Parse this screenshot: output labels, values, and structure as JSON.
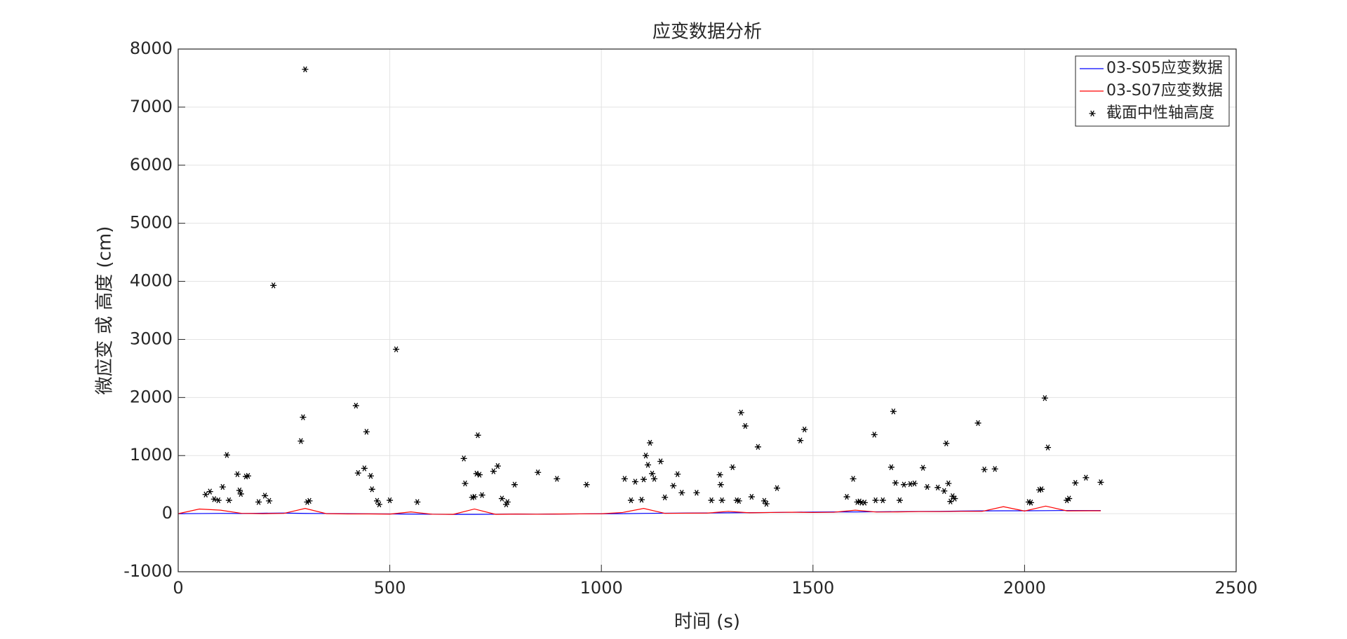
{
  "chart_data": {
    "type": "line",
    "title": "应变数据分析",
    "xlabel": "时间 (s)",
    "ylabel": "微应变 或 高度 (cm)",
    "xlim": [
      0,
      2500
    ],
    "ylim": [
      -1000,
      8000
    ],
    "xticks": [
      0,
      500,
      1000,
      1500,
      2000,
      2500
    ],
    "yticks": [
      -1000,
      0,
      1000,
      2000,
      3000,
      4000,
      5000,
      6000,
      7000,
      8000
    ],
    "grid": true,
    "legend": "top-right",
    "series": [
      {
        "name": "03-S05应变数据",
        "color": "#0000ff",
        "mode": "line",
        "x": [
          0,
          50,
          100,
          150,
          200,
          250,
          300,
          350,
          400,
          450,
          500,
          550,
          600,
          650,
          700,
          750,
          800,
          850,
          900,
          950,
          1000,
          1050,
          1100,
          1150,
          1200,
          1250,
          1300,
          1350,
          1400,
          1450,
          1500,
          1550,
          1600,
          1650,
          1700,
          1750,
          1800,
          1850,
          1900,
          1950,
          2000,
          2050,
          2100,
          2150,
          2180
        ],
        "values": [
          0,
          2,
          5,
          3,
          8,
          10,
          4,
          2,
          0,
          -3,
          -5,
          -8,
          -10,
          -12,
          -12,
          -10,
          -8,
          -10,
          -6,
          -4,
          -2,
          0,
          5,
          8,
          10,
          12,
          15,
          18,
          20,
          25,
          28,
          30,
          30,
          32,
          35,
          38,
          40,
          45,
          48,
          50,
          50,
          52,
          55,
          55,
          55
        ]
      },
      {
        "name": "03-S07应变数据",
        "color": "#ff0000",
        "mode": "line",
        "x": [
          0,
          50,
          100,
          150,
          200,
          250,
          300,
          350,
          400,
          450,
          500,
          550,
          600,
          650,
          700,
          750,
          800,
          850,
          900,
          950,
          1000,
          1050,
          1100,
          1150,
          1200,
          1250,
          1300,
          1350,
          1400,
          1450,
          1500,
          1550,
          1600,
          1650,
          1700,
          1750,
          1800,
          1850,
          1900,
          1950,
          2000,
          2050,
          2100,
          2150,
          2180
        ],
        "values": [
          0,
          80,
          60,
          5,
          0,
          5,
          90,
          0,
          -5,
          -5,
          -8,
          30,
          -10,
          -12,
          80,
          -12,
          -8,
          -10,
          -6,
          -4,
          -2,
          20,
          90,
          5,
          8,
          10,
          40,
          15,
          20,
          25,
          20,
          25,
          60,
          28,
          30,
          35,
          35,
          40,
          40,
          120,
          45,
          130,
          48,
          50,
          50
        ]
      },
      {
        "name": "截面中性轴高度",
        "color": "#000000",
        "mode": "marker",
        "x": [
          65,
          75,
          85,
          95,
          105,
          115,
          120,
          140,
          145,
          148,
          160,
          165,
          190,
          205,
          215,
          225,
          290,
          295,
          300,
          305,
          310,
          420,
          425,
          440,
          445,
          455,
          458,
          470,
          475,
          500,
          515,
          565,
          675,
          678,
          695,
          700,
          705,
          708,
          712,
          718,
          745,
          755,
          765,
          775,
          778,
          795,
          850,
          895,
          965,
          1055,
          1070,
          1080,
          1095,
          1100,
          1105,
          1110,
          1115,
          1120,
          1125,
          1140,
          1150,
          1170,
          1180,
          1190,
          1225,
          1260,
          1280,
          1282,
          1285,
          1310,
          1320,
          1325,
          1330,
          1340,
          1355,
          1370,
          1385,
          1390,
          1415,
          1470,
          1480,
          1580,
          1595,
          1605,
          1610,
          1615,
          1622,
          1645,
          1648,
          1665,
          1685,
          1690,
          1695,
          1705,
          1715,
          1730,
          1740,
          1760,
          1770,
          1795,
          1810,
          1815,
          1820,
          1825,
          1830,
          1835,
          1890,
          1905,
          1930,
          2010,
          2015,
          2035,
          2040,
          2048,
          2055,
          2100,
          2105,
          2120,
          2145,
          2180
        ],
        "values": [
          330,
          380,
          250,
          230,
          460,
          1010,
          230,
          680,
          400,
          340,
          640,
          650,
          200,
          310,
          220,
          3930,
          1250,
          1660,
          7650,
          200,
          220,
          1860,
          700,
          780,
          1410,
          650,
          420,
          220,
          160,
          230,
          2830,
          200,
          950,
          520,
          280,
          290,
          690,
          1350,
          670,
          320,
          730,
          820,
          260,
          160,
          200,
          500,
          710,
          600,
          500,
          600,
          230,
          550,
          240,
          590,
          1000,
          840,
          1220,
          690,
          600,
          900,
          280,
          480,
          680,
          360,
          360,
          230,
          670,
          500,
          230,
          800,
          230,
          220,
          1740,
          1510,
          290,
          1150,
          220,
          170,
          440,
          1260,
          1450,
          290,
          600,
          200,
          210,
          190,
          190,
          1360,
          230,
          230,
          800,
          1760,
          530,
          230,
          500,
          510,
          520,
          790,
          460,
          450,
          390,
          1210,
          520,
          210,
          300,
          260,
          1560,
          760,
          770,
          200,
          190,
          410,
          420,
          1990,
          1140,
          230,
          260,
          530,
          620,
          540
        ]
      }
    ]
  }
}
